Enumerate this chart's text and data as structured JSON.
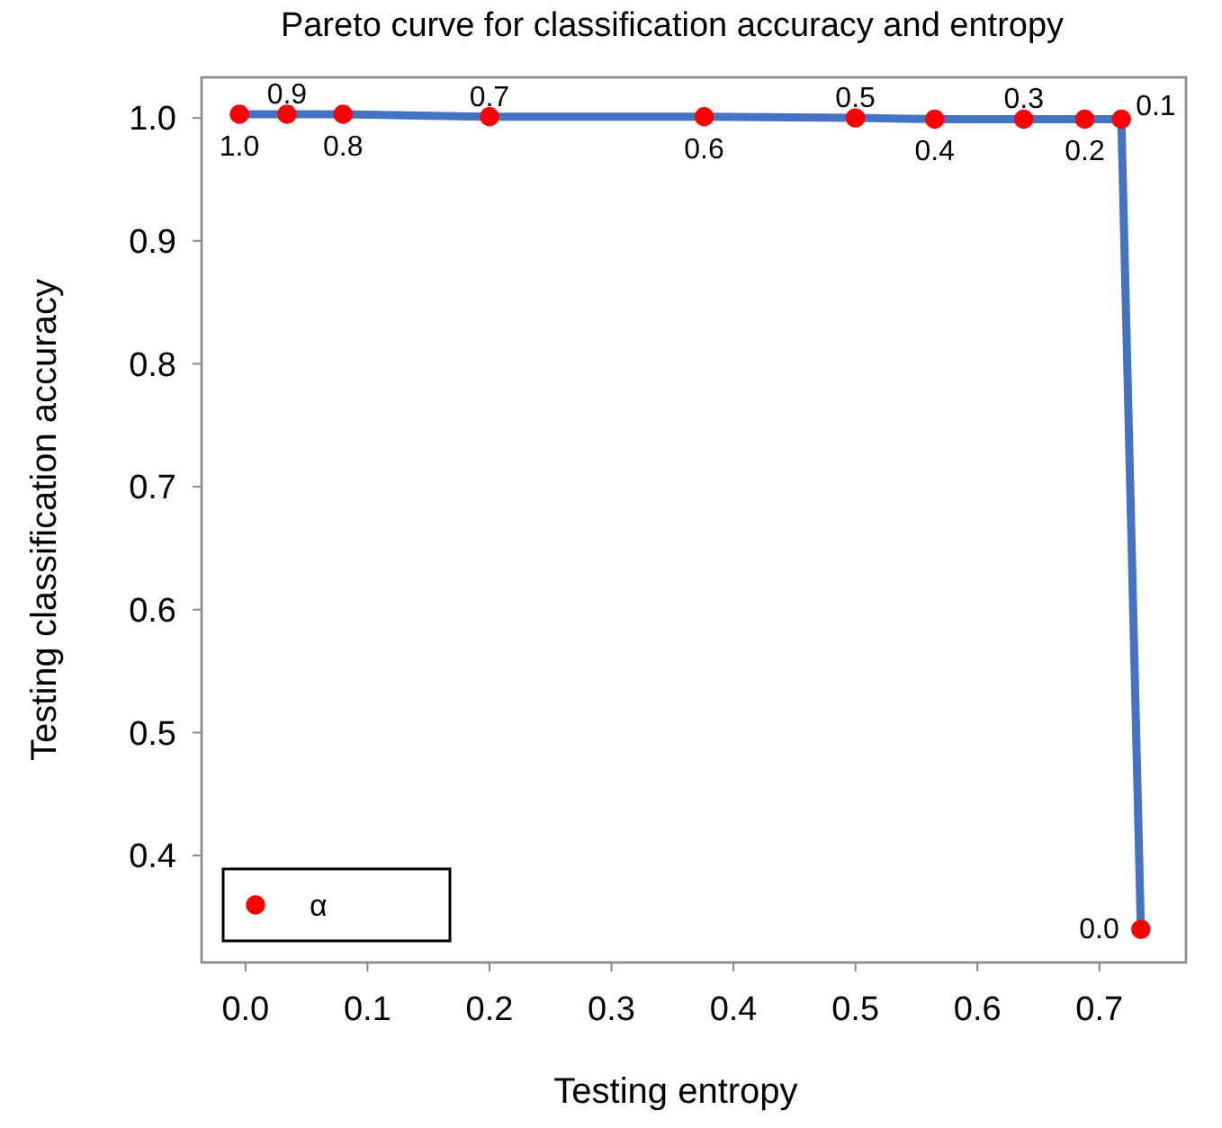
{
  "chart_data": {
    "type": "line",
    "title": "Pareto curve for classification accuracy and entropy",
    "xlabel": "Testing entropy",
    "ylabel": "Testing classification accuracy",
    "x": [
      -0.005,
      0.034,
      0.08,
      0.2,
      0.376,
      0.5,
      0.565,
      0.638,
      0.688,
      0.718,
      0.734
    ],
    "series": [
      {
        "marker": "none",
        "color": "#4472c4",
        "values": [
          1.003,
          1.003,
          1.003,
          1.001,
          1.001,
          1.0,
          0.999,
          0.999,
          0.999,
          0.999,
          0.34
        ]
      },
      {
        "type": "scatter",
        "marker": "circle",
        "name": "α",
        "color": "#ff0000",
        "values": [
          1.003,
          1.003,
          1.003,
          1.001,
          1.001,
          1.0,
          0.999,
          0.999,
          0.999,
          0.999,
          0.34
        ]
      }
    ],
    "annotations": [
      {
        "text": "1.0",
        "x": -0.005,
        "y": 1.003
      },
      {
        "text": "0.9",
        "x": 0.034,
        "y": 1.003
      },
      {
        "text": "0.8",
        "x": 0.08,
        "y": 1.003
      },
      {
        "text": "0.7",
        "x": 0.2,
        "y": 1.001
      },
      {
        "text": "0.6",
        "x": 0.376,
        "y": 1.001
      },
      {
        "text": "0.5",
        "x": 0.5,
        "y": 1.0
      },
      {
        "text": "0.4",
        "x": 0.565,
        "y": 0.999
      },
      {
        "text": "0.3",
        "x": 0.638,
        "y": 0.999
      },
      {
        "text": "0.2",
        "x": 0.688,
        "y": 0.999
      },
      {
        "text": "0.1",
        "x": 0.718,
        "y": 0.999
      },
      {
        "text": "0.0",
        "x": 0.734,
        "y": 0.34
      }
    ],
    "xlim": [
      -0.036,
      0.771
    ],
    "ylim": [
      0.313,
      1.033
    ],
    "xticks": [
      {
        "value": 0,
        "label": "0.0"
      },
      0.1,
      0.2,
      0.3,
      0.4,
      0.5,
      0.6,
      0.7
    ],
    "yticks": [
      0.4,
      0.5,
      0.6,
      0.7,
      0.8,
      0.9,
      {
        "value": 1,
        "label": "1.0"
      }
    ],
    "legend": "bottom left",
    "grid": false,
    "line_style": "solid"
  }
}
